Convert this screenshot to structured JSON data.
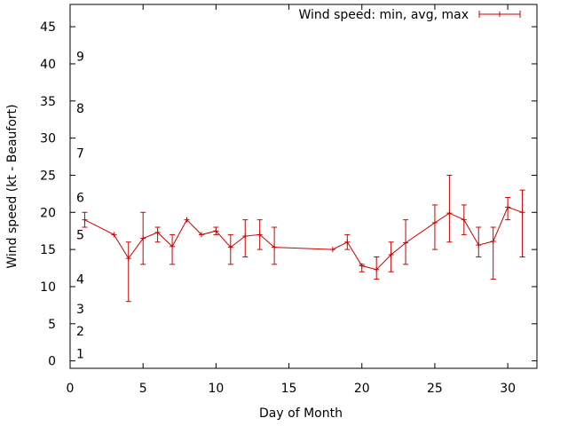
{
  "chart_data": {
    "type": "line",
    "title": "",
    "xlabel": "Day of Month",
    "ylabel": "Wind speed (kt - Beaufort)",
    "xlim": [
      0,
      32
    ],
    "ylim": [
      -1,
      48
    ],
    "xticks": [
      0,
      5,
      10,
      15,
      20,
      25,
      30
    ],
    "yticks": [
      0,
      5,
      10,
      15,
      20,
      25,
      30,
      35,
      40,
      45
    ],
    "grid": false,
    "legend": "top-right",
    "beaufort_labels": [
      {
        "label": "1",
        "y": 1
      },
      {
        "label": "2",
        "y": 4
      },
      {
        "label": "3",
        "y": 7
      },
      {
        "label": "4",
        "y": 11
      },
      {
        "label": "5",
        "y": 17
      },
      {
        "label": "6",
        "y": 22
      },
      {
        "label": "7",
        "y": 28
      },
      {
        "label": "8",
        "y": 34
      },
      {
        "label": "9",
        "y": 41
      }
    ],
    "series": [
      {
        "name": "Wind speed: min, avg, max",
        "color": "#cc0000",
        "points": [
          {
            "x": 1,
            "avg": 19.0,
            "min": 18.0,
            "max": 20.0
          },
          {
            "x": 3,
            "avg": 17.0,
            "min": 17.0,
            "max": 17.0
          },
          {
            "x": 4,
            "avg": 13.8,
            "min": 8.0,
            "max": 16.0
          },
          {
            "x": 5,
            "avg": 16.5,
            "min": 13.0,
            "max": 20.0
          },
          {
            "x": 6,
            "avg": 17.3,
            "min": 16.0,
            "max": 18.0
          },
          {
            "x": 7,
            "avg": 15.4,
            "min": 13.0,
            "max": 17.0
          },
          {
            "x": 8,
            "avg": 19.0,
            "min": 19.0,
            "max": 19.0
          },
          {
            "x": 9,
            "avg": 17.0,
            "min": 17.0,
            "max": 17.0
          },
          {
            "x": 10,
            "avg": 17.5,
            "min": 17.0,
            "max": 18.0
          },
          {
            "x": 11,
            "avg": 15.3,
            "min": 13.0,
            "max": 17.0
          },
          {
            "x": 12,
            "avg": 16.8,
            "min": 14.0,
            "max": 19.0
          },
          {
            "x": 13,
            "avg": 17.0,
            "min": 15.0,
            "max": 19.0
          },
          {
            "x": 14,
            "avg": 15.3,
            "min": 13.0,
            "max": 18.0
          },
          {
            "x": 18,
            "avg": 15.0,
            "min": 15.0,
            "max": 15.0
          },
          {
            "x": 19,
            "avg": 16.0,
            "min": 15.0,
            "max": 17.0
          },
          {
            "x": 20,
            "avg": 12.8,
            "min": 12.0,
            "max": 13.0
          },
          {
            "x": 21,
            "avg": 12.3,
            "min": 11.0,
            "max": 14.0
          },
          {
            "x": 22,
            "avg": 14.3,
            "min": 12.0,
            "max": 16.0
          },
          {
            "x": 23,
            "avg": 15.9,
            "min": 13.0,
            "max": 19.0
          },
          {
            "x": 25,
            "avg": 18.6,
            "min": 15.0,
            "max": 21.0
          },
          {
            "x": 26,
            "avg": 19.9,
            "min": 16.0,
            "max": 25.0
          },
          {
            "x": 27,
            "avg": 19.0,
            "min": 17.0,
            "max": 21.0
          },
          {
            "x": 28,
            "avg": 15.6,
            "min": 14.0,
            "max": 18.0
          },
          {
            "x": 29,
            "avg": 16.1,
            "min": 11.0,
            "max": 18.0
          },
          {
            "x": 30,
            "avg": 20.7,
            "min": 19.0,
            "max": 22.0
          },
          {
            "x": 31,
            "avg": 20.0,
            "min": 14.0,
            "max": 23.0
          }
        ]
      }
    ]
  }
}
